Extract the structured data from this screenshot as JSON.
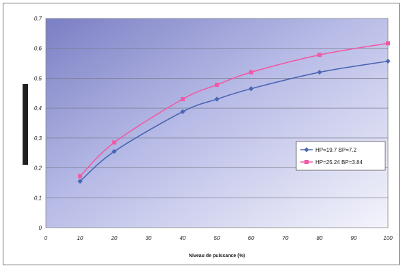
{
  "chart_data": {
    "type": "line",
    "title": "",
    "xlabel": "Niveau de puissance (%)",
    "ylabel": "",
    "xlim": [
      0,
      100
    ],
    "ylim": [
      0,
      0.7
    ],
    "x_ticks": [
      0,
      10,
      20,
      30,
      40,
      50,
      60,
      70,
      80,
      90,
      100
    ],
    "x_tick_labels": [
      "0",
      "10",
      "20",
      "30",
      "40",
      "50",
      "60",
      "70",
      "80",
      "90",
      "100"
    ],
    "y_ticks": [
      0,
      0.1,
      0.2,
      0.3,
      0.4,
      0.5,
      0.6,
      0.7
    ],
    "y_tick_labels": [
      "0",
      "0,1",
      "0,2",
      "0,3",
      "0,4",
      "0,5",
      "0,6",
      "0,7"
    ],
    "grid": "horizontal",
    "legend_position": "right",
    "series": [
      {
        "name": "HP=19.7 BP=7.2",
        "color": "#4a66b3",
        "marker": "diamond",
        "x": [
          10,
          20,
          40,
          50,
          60,
          80,
          100
        ],
        "y": [
          0.155,
          0.255,
          0.388,
          0.43,
          0.465,
          0.52,
          0.557
        ]
      },
      {
        "name": "HP=25.24 BP=3.84",
        "color": "#f05aa6",
        "marker": "square",
        "x": [
          10,
          20,
          40,
          50,
          60,
          80,
          100
        ],
        "y": [
          0.172,
          0.285,
          0.43,
          0.478,
          0.52,
          0.578,
          0.617
        ]
      }
    ]
  }
}
